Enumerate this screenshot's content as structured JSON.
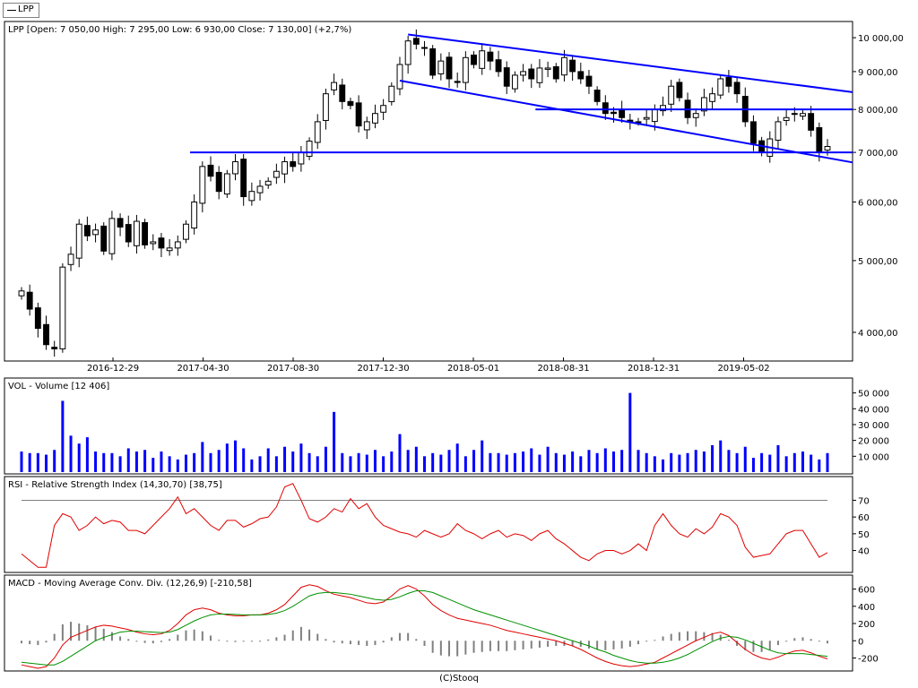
{
  "legend": {
    "label": "LPP"
  },
  "footer": "(C)Stooq",
  "chart_data": [
    {
      "type": "candlestick",
      "panel": "price",
      "title": "LPP [Open: 7 050,00  High: 7 295,00  Low: 6 930,00  Close: 7 130,00] (+2,7%)",
      "series_name": "LPP",
      "scale": "log",
      "ylim": [
        3700,
        10400
      ],
      "y_ticks": [
        4000,
        5000,
        6000,
        7000,
        8000,
        9000,
        10000
      ],
      "y_tick_labels": [
        "4 000,00",
        "5 000,00",
        "6 000,00",
        "7 000,00",
        "8 000,00",
        "9 000,00",
        "10 000,00"
      ],
      "x_tick_labels": [
        "2016-12-29",
        "2017-04-30",
        "2017-08-30",
        "2017-12-30",
        "2018-05-01",
        "2018-08-31",
        "2018-12-31",
        "2019-05-02"
      ],
      "last_candle": {
        "open": 7050,
        "high": 7295,
        "low": 6930,
        "close": 7130
      },
      "closes": [
        4550,
        4300,
        4050,
        3850,
        3800,
        4900,
        5100,
        5600,
        5400,
        5500,
        5150,
        5700,
        5550,
        5300,
        5650,
        5250,
        5300,
        5200,
        5200,
        5300,
        5600,
        6000,
        6700,
        6500,
        6200,
        6550,
        6800,
        6100,
        6200,
        6300,
        6400,
        6600,
        6800,
        6700,
        7000,
        7250,
        7700,
        8400,
        8700,
        8200,
        8100,
        7600,
        7700,
        7900,
        8100,
        8600,
        9200,
        9900,
        9800,
        9700,
        8900,
        9300,
        8800,
        8700,
        9400,
        9200,
        9600,
        9300,
        9000,
        8600,
        8900,
        9000,
        8800,
        9100,
        9100,
        8800,
        9400,
        9000,
        8800,
        8600,
        8200,
        7900,
        7900,
        7800,
        7700,
        7700,
        7800,
        8000,
        8100,
        8600,
        8300,
        7800,
        7900,
        8300,
        8400,
        8800,
        8600,
        8400,
        7700,
        7200,
        7000,
        7300,
        7700,
        7800,
        7900,
        7900,
        7500,
        7000,
        7130
      ],
      "horizontal_lines": [
        7000,
        8000
      ],
      "channel_lines": [
        {
          "from": {
            "index": 47,
            "value": 10100
          },
          "to": {
            "index": 99,
            "value": 8500
          }
        },
        {
          "from": {
            "index": 46,
            "value": 8750
          },
          "to": {
            "index": 99,
            "value": 6850
          }
        }
      ],
      "colors": {
        "up": "#ffffff",
        "down": "#000000",
        "lines": "#0000ff"
      }
    },
    {
      "type": "bar",
      "panel": "volume",
      "title": "VOL - Volume [12 406]",
      "ylim": [
        0,
        56000
      ],
      "y_ticks": [
        10000,
        20000,
        30000,
        40000,
        50000
      ],
      "y_tick_labels": [
        "10 000",
        "20 000",
        "30 000",
        "40 000",
        "50 000"
      ],
      "values": [
        13000,
        12000,
        12000,
        11000,
        14000,
        45000,
        23000,
        18000,
        22000,
        13000,
        12000,
        12000,
        10000,
        15000,
        13000,
        14000,
        9000,
        13000,
        10000,
        8000,
        11000,
        12000,
        19000,
        12000,
        14000,
        18000,
        20000,
        15000,
        8000,
        10000,
        15000,
        10000,
        16000,
        13000,
        18000,
        12000,
        10000,
        16000,
        38000,
        12000,
        10000,
        12000,
        11000,
        14000,
        10000,
        13000,
        24000,
        14000,
        16000,
        10000,
        12000,
        11000,
        14000,
        18000,
        10000,
        14000,
        20000,
        12000,
        12000,
        11000,
        12000,
        13000,
        15000,
        11000,
        16000,
        12000,
        11000,
        13000,
        10000,
        14000,
        12000,
        15000,
        13000,
        14000,
        50000,
        14000,
        12000,
        10000,
        8000,
        12000,
        11000,
        12000,
        14000,
        13000,
        17000,
        20000,
        14000,
        12000,
        16000,
        9000,
        12000,
        11000,
        17000,
        10000,
        12000,
        13000,
        11000,
        8000,
        12000
      ],
      "color": "#0000ff"
    },
    {
      "type": "line",
      "panel": "rsi",
      "title": "RSI - Relative Strength Index (14,30,70) [38,75]",
      "ylim": [
        28,
        82
      ],
      "y_ticks": [
        40,
        50,
        60,
        70
      ],
      "y_tick_labels": [
        "40",
        "50",
        "60",
        "70"
      ],
      "reference_line": 70,
      "values": [
        38,
        34,
        30,
        30,
        55,
        62,
        60,
        52,
        55,
        60,
        56,
        58,
        57,
        52,
        52,
        50,
        55,
        60,
        65,
        72,
        62,
        65,
        60,
        55,
        52,
        58,
        58,
        54,
        56,
        59,
        60,
        66,
        78,
        80,
        70,
        59,
        57,
        60,
        65,
        63,
        71,
        65,
        68,
        60,
        55,
        53,
        51,
        50,
        48,
        52,
        50,
        48,
        50,
        56,
        52,
        50,
        47,
        50,
        52,
        48,
        50,
        49,
        46,
        50,
        52,
        47,
        44,
        40,
        36,
        34,
        38,
        40,
        40,
        38,
        40,
        44,
        40,
        55,
        62,
        55,
        50,
        48,
        53,
        50,
        54,
        62,
        60,
        55,
        42,
        36,
        37,
        38,
        44,
        50,
        52,
        52,
        44,
        36,
        38.75
      ],
      "color": "#e00000"
    },
    {
      "type": "line",
      "panel": "macd",
      "title": "MACD - Moving Average Conv. Div. (12,26,9) [-210,58]",
      "ylim": [
        -330,
        720
      ],
      "y_ticks": [
        -200,
        0,
        200,
        400,
        600
      ],
      "y_tick_labels": [
        "-200",
        "0",
        "200",
        "400",
        "600"
      ],
      "series": [
        {
          "name": "MACD",
          "color": "#e00000",
          "values": [
            -280,
            -300,
            -320,
            -300,
            -200,
            -50,
            40,
            80,
            120,
            160,
            180,
            170,
            150,
            130,
            100,
            80,
            70,
            80,
            120,
            200,
            300,
            360,
            380,
            360,
            320,
            300,
            290,
            290,
            300,
            300,
            320,
            360,
            420,
            520,
            620,
            650,
            630,
            580,
            540,
            520,
            500,
            470,
            440,
            430,
            450,
            520,
            600,
            640,
            600,
            520,
            420,
            350,
            300,
            260,
            240,
            220,
            200,
            180,
            150,
            120,
            100,
            80,
            60,
            40,
            20,
            0,
            -30,
            -60,
            -100,
            -150,
            -200,
            -240,
            -270,
            -290,
            -300,
            -290,
            -270,
            -250,
            -200,
            -150,
            -100,
            -50,
            0,
            40,
            80,
            100,
            60,
            -20,
            -100,
            -160,
            -200,
            -220,
            -190,
            -150,
            -120,
            -110,
            -140,
            -180,
            -210.58
          ]
        },
        {
          "name": "Signal",
          "color": "#009000",
          "values": [
            -250,
            -260,
            -270,
            -280,
            -280,
            -240,
            -180,
            -120,
            -60,
            0,
            40,
            70,
            100,
            110,
            110,
            105,
            100,
            95,
            100,
            130,
            180,
            230,
            270,
            300,
            310,
            310,
            305,
            300,
            300,
            300,
            305,
            320,
            350,
            400,
            460,
            520,
            550,
            560,
            560,
            550,
            540,
            520,
            500,
            480,
            470,
            480,
            510,
            550,
            580,
            580,
            560,
            520,
            480,
            440,
            400,
            360,
            330,
            300,
            270,
            240,
            210,
            180,
            150,
            120,
            90,
            60,
            30,
            0,
            -30,
            -60,
            -100,
            -130,
            -170,
            -200,
            -230,
            -250,
            -260,
            -260,
            -250,
            -230,
            -200,
            -160,
            -110,
            -60,
            -10,
            30,
            50,
            40,
            10,
            -30,
            -70,
            -110,
            -140,
            -150,
            -150,
            -150,
            -160,
            -170,
            -180
          ]
        }
      ],
      "histogram_color": "#808080"
    }
  ]
}
